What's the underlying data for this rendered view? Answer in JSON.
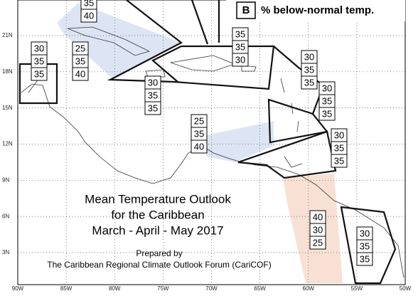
{
  "map": {
    "legend": {
      "key": "B",
      "text": "% below-normal temp."
    },
    "title": [
      "Mean Temperature Outlook",
      "for the Caribbean",
      "March - April - May 2017"
    ],
    "credit": [
      "Prepared by",
      "The Caribbean Regional Climate Outlook Forum (CariCOF)"
    ],
    "lat_labels": [
      "21N",
      "18N",
      "15N",
      "12N",
      "9N",
      "6N",
      "3N"
    ],
    "lon_labels": [
      "90W",
      "85W",
      "80W",
      "75W",
      "70W",
      "65W",
      "60W",
      "55W",
      "50W"
    ],
    "regions": [
      {
        "values": [
          35,
          40
        ]
      },
      {
        "values": [
          30,
          35,
          35
        ]
      },
      {
        "values": [
          25,
          35,
          40
        ]
      },
      {
        "values": [
          35,
          35,
          30
        ]
      },
      {
        "values": [
          30,
          35,
          35
        ]
      },
      {
        "values": [
          30,
          35,
          35
        ]
      },
      {
        "values": [
          30,
          35,
          35
        ]
      },
      {
        "values": [
          25,
          35,
          40
        ]
      },
      {
        "values": [
          30,
          35,
          35
        ]
      },
      {
        "values": [
          40,
          30,
          25
        ]
      },
      {
        "values": [
          30,
          35,
          35
        ]
      }
    ]
  }
}
